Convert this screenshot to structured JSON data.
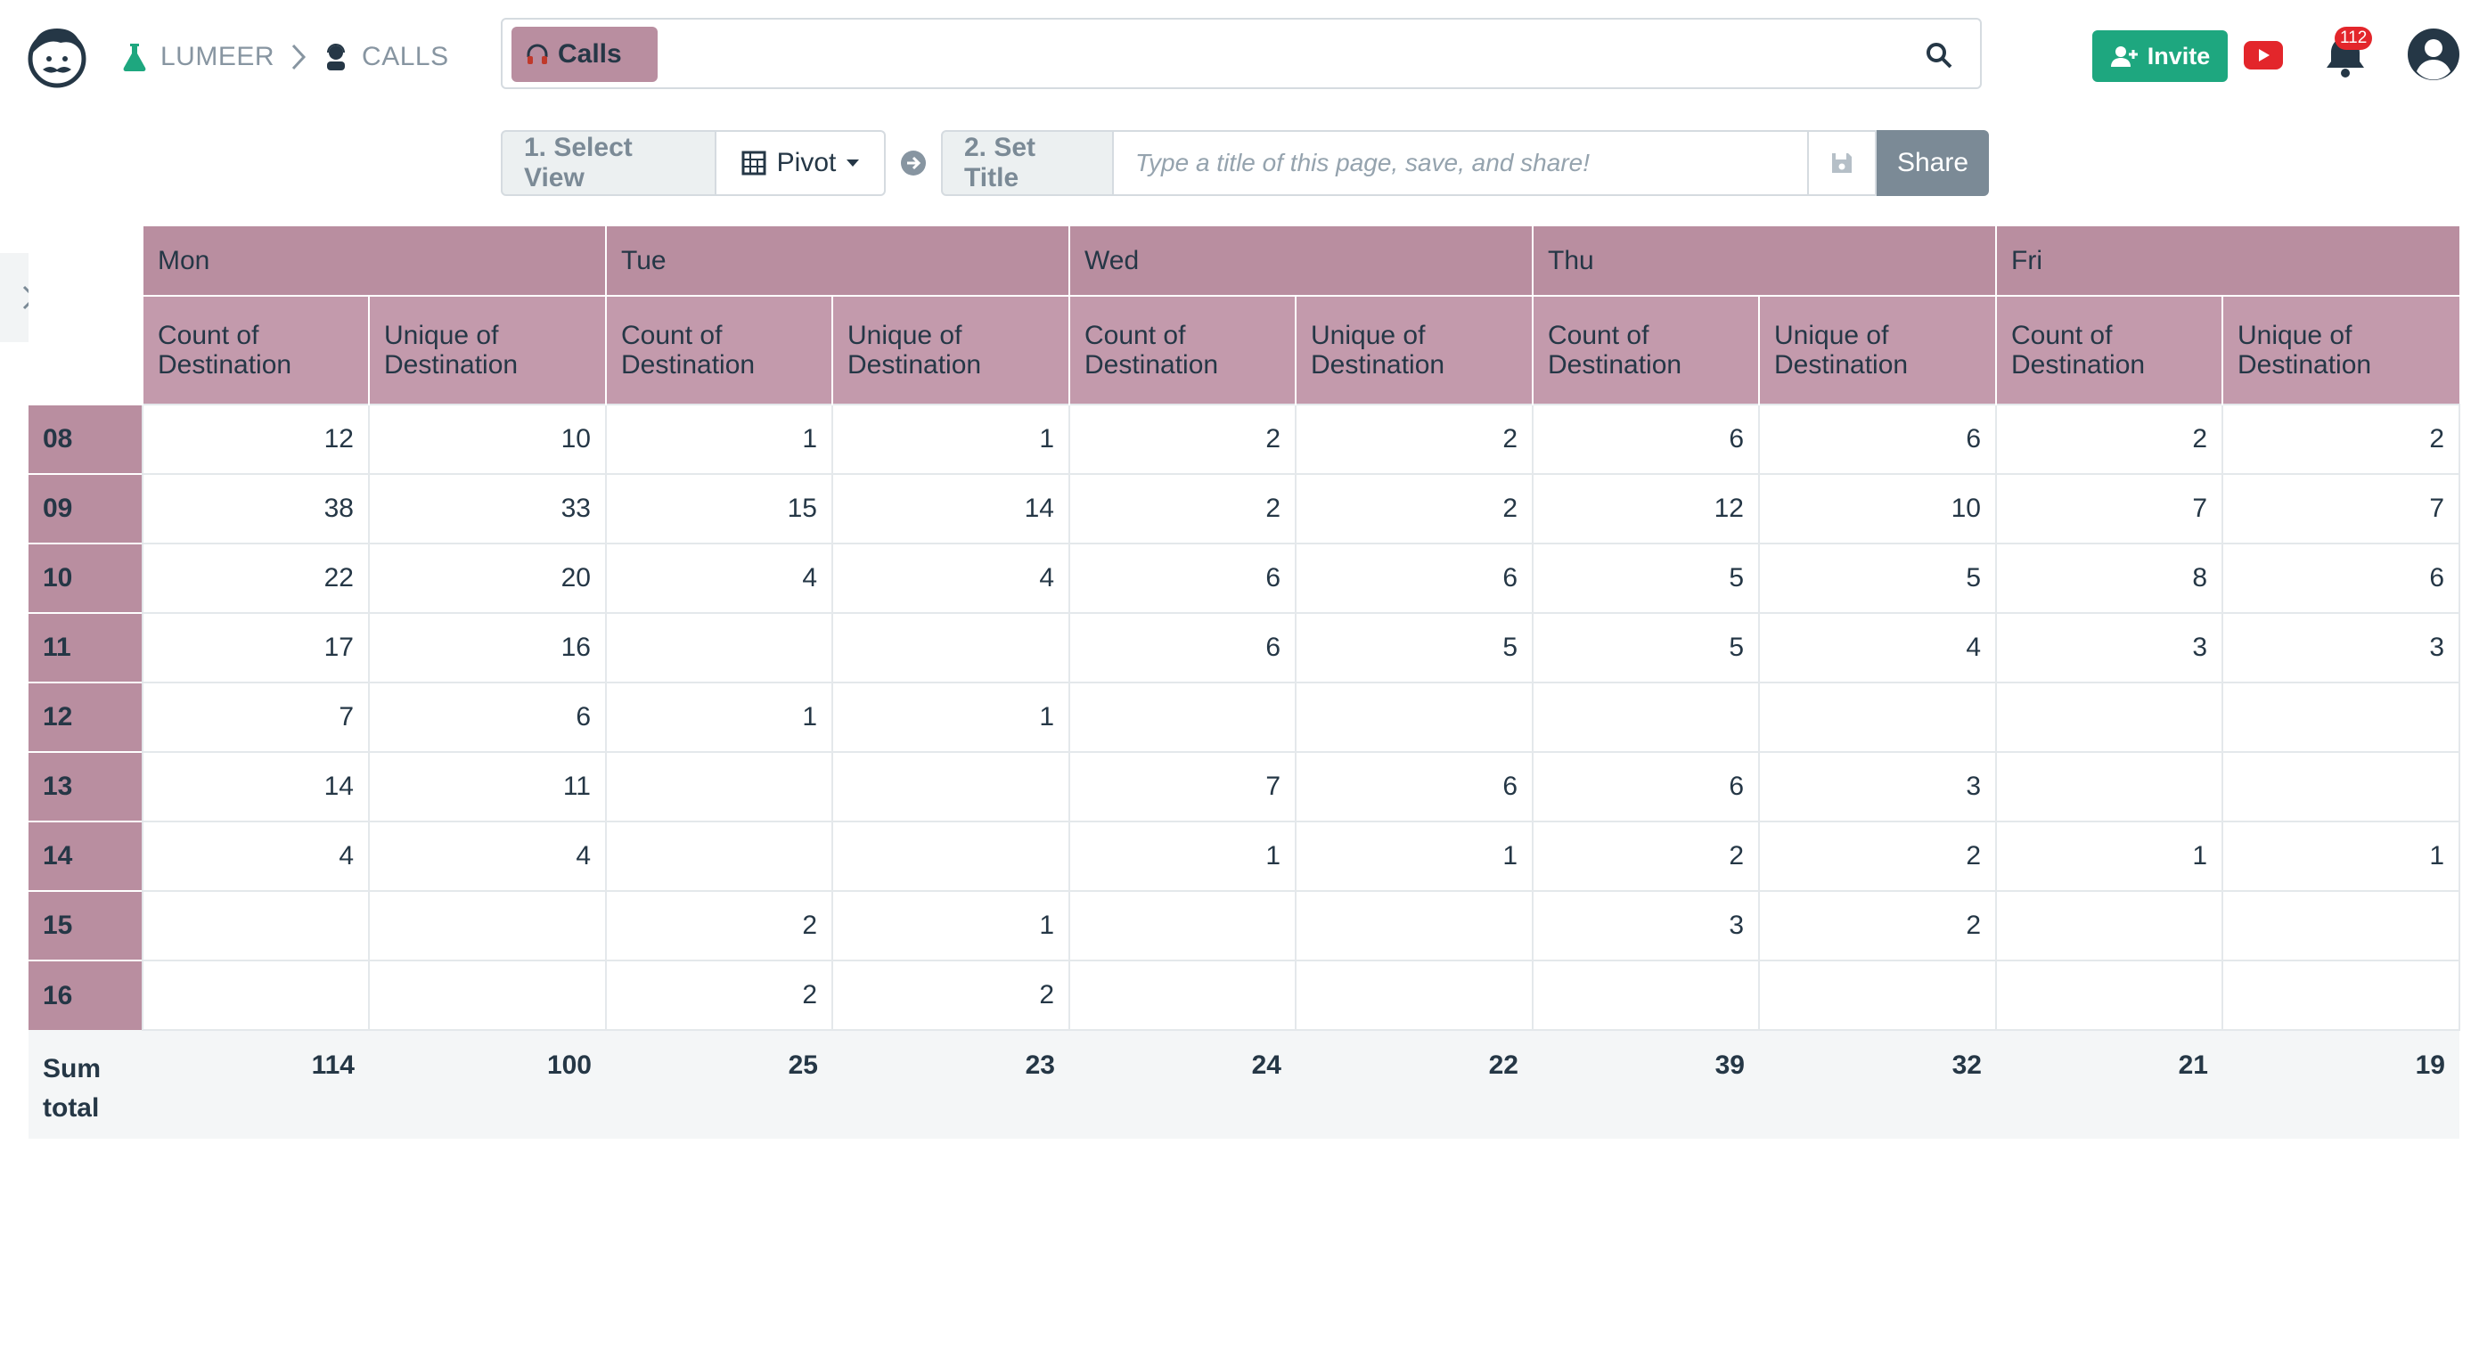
{
  "header": {
    "breadcrumb": [
      {
        "label": "LUMEER",
        "icon": "flask-icon"
      },
      {
        "label": "CALLS",
        "icon": "operator-icon"
      }
    ],
    "search_chip": {
      "label": "Calls",
      "icon": "headphones-icon",
      "color": "#b98ea0"
    },
    "invite_label": "Invite",
    "notification_count": "112"
  },
  "viewbar": {
    "step1_label": "1. Select View",
    "view_label": "Pivot",
    "step2_label": "2. Set Title",
    "title_placeholder": "Type a title of this page, save, and share!",
    "share_label": "Share"
  },
  "pivot": {
    "days": [
      "Mon",
      "Tue",
      "Wed",
      "Thu",
      "Fri"
    ],
    "aggregations": [
      "Count of Destination",
      "Unique of Destination"
    ],
    "rows": [
      {
        "label": "08",
        "values": [
          "12",
          "10",
          "1",
          "1",
          "2",
          "2",
          "6",
          "6",
          "2",
          "2"
        ]
      },
      {
        "label": "09",
        "values": [
          "38",
          "33",
          "15",
          "14",
          "2",
          "2",
          "12",
          "10",
          "7",
          "7"
        ]
      },
      {
        "label": "10",
        "values": [
          "22",
          "20",
          "4",
          "4",
          "6",
          "6",
          "5",
          "5",
          "8",
          "6"
        ]
      },
      {
        "label": "11",
        "values": [
          "17",
          "16",
          "",
          "",
          "6",
          "5",
          "5",
          "4",
          "3",
          "3"
        ]
      },
      {
        "label": "12",
        "values": [
          "7",
          "6",
          "1",
          "1",
          "",
          "",
          "",
          "",
          "",
          ""
        ]
      },
      {
        "label": "13",
        "values": [
          "14",
          "11",
          "",
          "",
          "7",
          "6",
          "6",
          "3",
          "",
          ""
        ]
      },
      {
        "label": "14",
        "values": [
          "4",
          "4",
          "",
          "",
          "1",
          "1",
          "2",
          "2",
          "1",
          "1"
        ]
      },
      {
        "label": "15",
        "values": [
          "",
          "",
          "2",
          "1",
          "",
          "",
          "3",
          "2",
          "",
          ""
        ]
      },
      {
        "label": "16",
        "values": [
          "",
          "",
          "2",
          "2",
          "",
          "",
          "",
          "",
          "",
          ""
        ]
      }
    ],
    "sum_label": "Sum total",
    "sums": [
      "114",
      "100",
      "25",
      "23",
      "24",
      "22",
      "39",
      "32",
      "21",
      "19"
    ]
  },
  "colors": {
    "header": "#b98ea0",
    "invite": "#1ea77f",
    "share": "#7b8a96"
  }
}
